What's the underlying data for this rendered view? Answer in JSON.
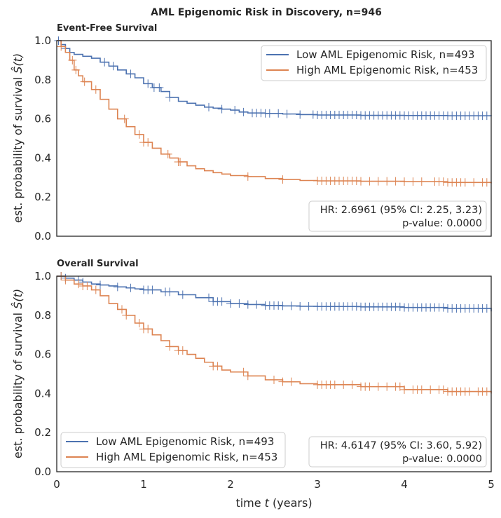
{
  "figure_title": "AML Epigenomic Risk in Discovery, n=946",
  "x_axis_label_prefix": "time ",
  "x_axis_label_var": "t",
  "x_axis_label_suffix": " (years)",
  "y_axis_label_text": "est. probability of survival ",
  "y_axis_label_symbol": "Ŝ(t)",
  "colors": {
    "low": "#4c72b0",
    "high": "#dd8452"
  },
  "chart_data": [
    {
      "type": "line",
      "title": "Event-Free Survival",
      "xlim": [
        0,
        5
      ],
      "ylim": [
        0,
        1
      ],
      "xticks": [
        "0",
        "1",
        "2",
        "3",
        "4",
        "5"
      ],
      "yticks": [
        "0.0",
        "0.2",
        "0.4",
        "0.6",
        "0.8",
        "1.0"
      ],
      "legend_placement": "upper right",
      "annotation_placement": "lower right",
      "annotation_line1": "HR: 2.6961 (95% CI: 2.25, 3.23)",
      "annotation_line2": "p-value: 0.0000",
      "series": [
        {
          "name": "Low AML Epigenomic Risk, n=493",
          "key": "low",
          "x": [
            0,
            0.05,
            0.1,
            0.15,
            0.2,
            0.3,
            0.4,
            0.5,
            0.6,
            0.7,
            0.8,
            0.9,
            1.0,
            1.1,
            1.2,
            1.3,
            1.4,
            1.5,
            1.6,
            1.7,
            1.8,
            1.9,
            2.0,
            2.1,
            2.2,
            2.4,
            2.6,
            2.8,
            3.0,
            3.5,
            4.0,
            4.5,
            5.0
          ],
          "y": [
            1.0,
            0.98,
            0.96,
            0.94,
            0.93,
            0.92,
            0.91,
            0.89,
            0.87,
            0.85,
            0.83,
            0.81,
            0.78,
            0.76,
            0.74,
            0.71,
            0.69,
            0.68,
            0.67,
            0.66,
            0.655,
            0.65,
            0.645,
            0.635,
            0.63,
            0.628,
            0.625,
            0.622,
            0.62,
            0.618,
            0.617,
            0.616,
            0.615
          ],
          "censor_x": [
            0.02,
            0.1,
            0.55,
            0.65,
            0.85,
            1.05,
            1.12,
            1.18,
            1.3,
            1.75,
            1.9,
            2.05,
            2.15,
            2.25,
            2.3,
            2.35,
            2.4,
            2.45,
            2.55,
            2.65,
            2.8,
            2.95,
            3.0,
            3.05,
            3.1,
            3.15,
            3.2,
            3.25,
            3.3,
            3.35,
            3.4,
            3.45,
            3.5,
            3.55,
            3.6,
            3.65,
            3.7,
            3.75,
            3.8,
            3.85,
            3.9,
            3.95,
            4.0,
            4.05,
            4.1,
            4.15,
            4.2,
            4.25,
            4.3,
            4.35,
            4.4,
            4.45,
            4.5,
            4.55,
            4.6,
            4.65,
            4.7,
            4.75,
            4.8,
            4.85,
            4.9,
            4.95
          ]
        },
        {
          "name": "High AML Epigenomic Risk, n=453",
          "key": "high",
          "x": [
            0,
            0.05,
            0.1,
            0.15,
            0.2,
            0.25,
            0.3,
            0.4,
            0.5,
            0.6,
            0.7,
            0.8,
            0.9,
            1.0,
            1.1,
            1.2,
            1.3,
            1.4,
            1.5,
            1.6,
            1.7,
            1.8,
            1.9,
            2.0,
            2.2,
            2.4,
            2.6,
            2.8,
            3.0,
            3.5,
            4.0,
            4.5,
            5.0
          ],
          "y": [
            1.0,
            0.97,
            0.94,
            0.9,
            0.85,
            0.82,
            0.79,
            0.75,
            0.7,
            0.65,
            0.6,
            0.56,
            0.52,
            0.48,
            0.45,
            0.42,
            0.4,
            0.38,
            0.36,
            0.345,
            0.335,
            0.325,
            0.318,
            0.31,
            0.305,
            0.295,
            0.29,
            0.285,
            0.283,
            0.281,
            0.279,
            0.275,
            0.27
          ],
          "censor_x": [
            0.05,
            0.18,
            0.22,
            0.32,
            0.45,
            0.78,
            0.95,
            1.0,
            1.05,
            1.28,
            1.4,
            1.42,
            2.2,
            2.6,
            3.0,
            3.05,
            3.1,
            3.15,
            3.2,
            3.25,
            3.3,
            3.35,
            3.4,
            3.45,
            3.5,
            3.6,
            3.7,
            3.8,
            3.9,
            4.0,
            4.1,
            4.2,
            4.35,
            4.4,
            4.45,
            4.5,
            4.55,
            4.6,
            4.65,
            4.7,
            4.8,
            4.9,
            4.95
          ]
        }
      ]
    },
    {
      "type": "line",
      "title": "Overall Survival",
      "xlim": [
        0,
        5
      ],
      "ylim": [
        0,
        1
      ],
      "xticks": [
        "0",
        "1",
        "2",
        "3",
        "4",
        "5"
      ],
      "yticks": [
        "0.0",
        "0.2",
        "0.4",
        "0.6",
        "0.8",
        "1.0"
      ],
      "legend_placement": "lower left",
      "annotation_placement": "lower right",
      "annotation_line1": "HR: 4.6147 (95% CI: 3.60, 5.92)",
      "annotation_line2": "p-value: 0.0000",
      "series": [
        {
          "name": "Low AML Epigenomic Risk, n=493",
          "key": "low",
          "x": [
            0,
            0.1,
            0.2,
            0.3,
            0.4,
            0.5,
            0.6,
            0.7,
            0.8,
            0.9,
            1.0,
            1.2,
            1.4,
            1.6,
            1.8,
            2.0,
            2.2,
            2.4,
            2.6,
            2.8,
            3.0,
            3.5,
            4.0,
            4.5,
            5.0
          ],
          "y": [
            1.0,
            0.99,
            0.98,
            0.97,
            0.96,
            0.955,
            0.95,
            0.945,
            0.94,
            0.935,
            0.93,
            0.92,
            0.905,
            0.89,
            0.87,
            0.86,
            0.855,
            0.85,
            0.848,
            0.846,
            0.845,
            0.843,
            0.84,
            0.835,
            0.82
          ],
          "censor_x": [
            0.05,
            0.1,
            0.25,
            0.3,
            0.5,
            0.7,
            0.85,
            1.0,
            1.05,
            1.1,
            1.25,
            1.3,
            1.45,
            1.75,
            1.8,
            1.85,
            1.9,
            2.0,
            2.1,
            2.2,
            2.3,
            2.4,
            2.45,
            2.5,
            2.55,
            2.6,
            2.7,
            2.8,
            2.9,
            3.0,
            3.05,
            3.1,
            3.15,
            3.2,
            3.25,
            3.3,
            3.35,
            3.4,
            3.45,
            3.5,
            3.55,
            3.6,
            3.65,
            3.7,
            3.75,
            3.8,
            3.85,
            3.9,
            3.95,
            4.0,
            4.05,
            4.1,
            4.15,
            4.2,
            4.25,
            4.3,
            4.35,
            4.4,
            4.45,
            4.5,
            4.55,
            4.6,
            4.65,
            4.7,
            4.75,
            4.8,
            4.85,
            4.9,
            4.95
          ]
        },
        {
          "name": "High AML Epigenomic Risk, n=453",
          "key": "high",
          "x": [
            0,
            0.1,
            0.2,
            0.3,
            0.4,
            0.5,
            0.6,
            0.7,
            0.8,
            0.9,
            1.0,
            1.1,
            1.2,
            1.3,
            1.4,
            1.5,
            1.6,
            1.7,
            1.8,
            1.9,
            2.0,
            2.2,
            2.4,
            2.6,
            2.8,
            3.0,
            3.5,
            4.0,
            4.5,
            5.0
          ],
          "y": [
            1.0,
            0.98,
            0.96,
            0.95,
            0.93,
            0.9,
            0.86,
            0.83,
            0.8,
            0.76,
            0.73,
            0.7,
            0.67,
            0.64,
            0.62,
            0.6,
            0.58,
            0.56,
            0.54,
            0.52,
            0.51,
            0.49,
            0.47,
            0.46,
            0.45,
            0.445,
            0.435,
            0.42,
            0.41,
            0.4
          ],
          "censor_x": [
            0.05,
            0.1,
            0.25,
            0.3,
            0.35,
            0.45,
            0.75,
            0.8,
            0.95,
            1.0,
            1.05,
            1.3,
            1.4,
            1.45,
            1.8,
            1.85,
            2.15,
            2.2,
            2.5,
            2.6,
            2.7,
            3.0,
            3.05,
            3.1,
            3.15,
            3.2,
            3.3,
            3.4,
            3.5,
            3.55,
            3.6,
            3.7,
            3.8,
            3.9,
            3.95,
            4.0,
            4.1,
            4.15,
            4.2,
            4.3,
            4.4,
            4.45,
            4.5,
            4.55,
            4.6,
            4.65,
            4.7,
            4.75,
            4.85,
            4.9,
            4.95
          ]
        }
      ]
    }
  ]
}
